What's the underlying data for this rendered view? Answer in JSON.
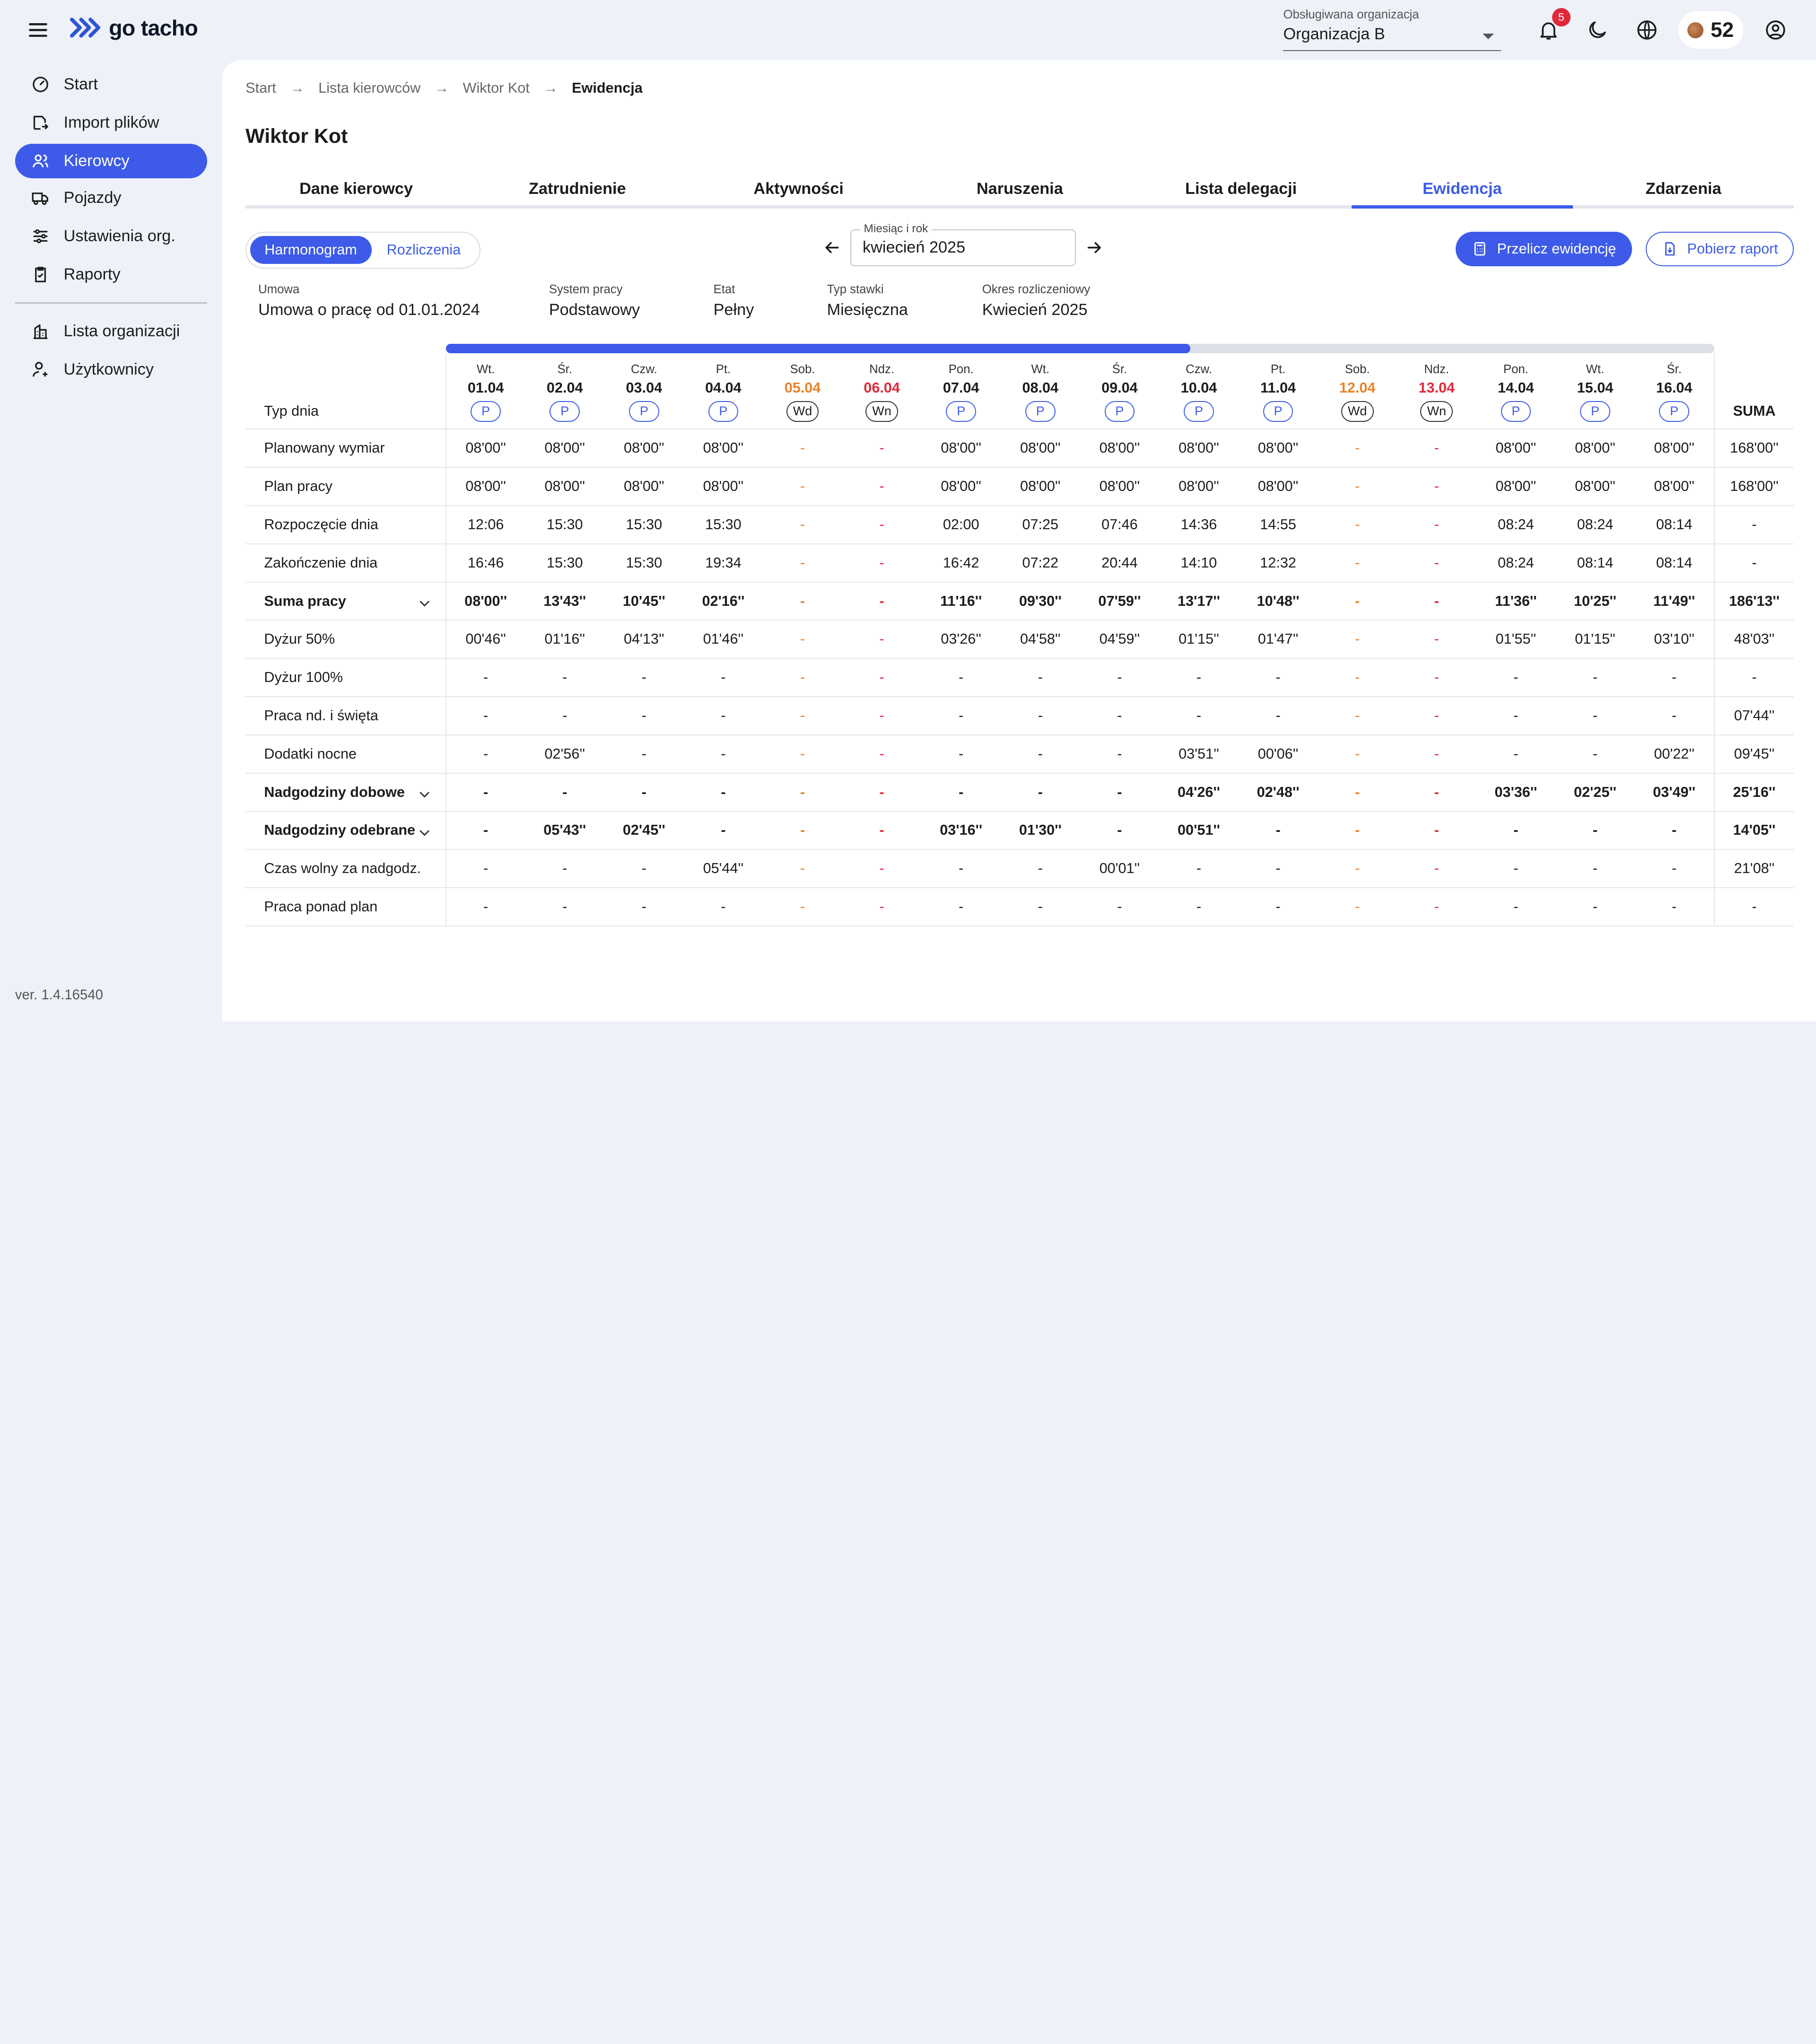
{
  "app": {
    "logo_text": "go tacho",
    "version": "ver. 1.4.16540"
  },
  "org": {
    "label": "Obsługiwana organizacja",
    "value": "Organizacja B"
  },
  "notifications": {
    "count": "5"
  },
  "coins": {
    "value": "52"
  },
  "sidebar": {
    "items": [
      {
        "label": "Start",
        "icon": "gauge-icon"
      },
      {
        "label": "Import plików",
        "icon": "file-import-icon"
      },
      {
        "label": "Kierowcy",
        "icon": "users-icon",
        "active": true
      },
      {
        "label": "Pojazdy",
        "icon": "truck-icon"
      },
      {
        "label": "Ustawienia org.",
        "icon": "sliders-icon"
      },
      {
        "label": "Raporty",
        "icon": "clipboard-icon"
      },
      {
        "label": "Lista organizacji",
        "icon": "building-icon"
      },
      {
        "label": "Użytkownicy",
        "icon": "user-key-icon"
      }
    ]
  },
  "breadcrumb": [
    "Start",
    "Lista kierowców",
    "Wiktor Kot",
    "Ewidencja"
  ],
  "page_title": "Wiktor Kot",
  "tabs": [
    "Dane kierowcy",
    "Zatrudnienie",
    "Aktywności",
    "Naruszenia",
    "Lista delegacji",
    "Ewidencja",
    "Zdarzenia"
  ],
  "active_tab": "Ewidencja",
  "view_toggle": {
    "harmonogram": "Harmonogram",
    "rozliczenia": "Rozliczenia"
  },
  "month": {
    "label": "Miesiąc i rok",
    "value": "kwiecień 2025"
  },
  "actions": {
    "recalc": "Przelicz ewidencję",
    "download": "Pobierz raport"
  },
  "info": [
    {
      "label": "Umowa",
      "value": "Umowa o pracę od 01.01.2024"
    },
    {
      "label": "System pracy",
      "value": "Podstawowy"
    },
    {
      "label": "Etat",
      "value": "Pełny"
    },
    {
      "label": "Typ stawki",
      "value": "Miesięczna"
    },
    {
      "label": "Okres rozliczeniowy",
      "value": "Kwiecień 2025"
    }
  ],
  "scroll_progress": 0.587,
  "colors": {
    "accent": "#3d5be8",
    "saturday": "#e8832a",
    "sunday": "#e0283a"
  },
  "table": {
    "type_label": "Typ dnia",
    "sum_label": "SUMA",
    "days": [
      {
        "name": "Wt.",
        "date": "01.04",
        "type": "P",
        "kind": "work"
      },
      {
        "name": "Śr.",
        "date": "02.04",
        "type": "P",
        "kind": "work"
      },
      {
        "name": "Czw.",
        "date": "03.04",
        "type": "P",
        "kind": "work"
      },
      {
        "name": "Pt.",
        "date": "04.04",
        "type": "P",
        "kind": "work"
      },
      {
        "name": "Sob.",
        "date": "05.04",
        "type": "Wd",
        "kind": "sat"
      },
      {
        "name": "Ndz.",
        "date": "06.04",
        "type": "Wn",
        "kind": "sun"
      },
      {
        "name": "Pon.",
        "date": "07.04",
        "type": "P",
        "kind": "work"
      },
      {
        "name": "Wt.",
        "date": "08.04",
        "type": "P",
        "kind": "work"
      },
      {
        "name": "Śr.",
        "date": "09.04",
        "type": "P",
        "kind": "work"
      },
      {
        "name": "Czw.",
        "date": "10.04",
        "type": "P",
        "kind": "work"
      },
      {
        "name": "Pt.",
        "date": "11.04",
        "type": "P",
        "kind": "work"
      },
      {
        "name": "Sob.",
        "date": "12.04",
        "type": "Wd",
        "kind": "sat"
      },
      {
        "name": "Ndz.",
        "date": "13.04",
        "type": "Wn",
        "kind": "sun"
      },
      {
        "name": "Pon.",
        "date": "14.04",
        "type": "P",
        "kind": "work"
      },
      {
        "name": "Wt.",
        "date": "15.04",
        "type": "P",
        "kind": "work"
      },
      {
        "name": "Śr.",
        "date": "16.04",
        "type": "P",
        "kind": "work"
      }
    ],
    "rows": [
      {
        "label": "Planowany wymiar",
        "bold": false,
        "expand": false,
        "values": [
          "08'00''",
          "08'00''",
          "08'00''",
          "08'00''",
          "-",
          "-",
          "08'00''",
          "08'00''",
          "08'00''",
          "08'00''",
          "08'00''",
          "-",
          "-",
          "08'00''",
          "08'00''",
          "08'00''"
        ],
        "sum": "168'00''"
      },
      {
        "label": "Plan pracy",
        "bold": false,
        "expand": false,
        "values": [
          "08'00''",
          "08'00''",
          "08'00''",
          "08'00''",
          "-",
          "-",
          "08'00''",
          "08'00''",
          "08'00''",
          "08'00''",
          "08'00''",
          "-",
          "-",
          "08'00''",
          "08'00''",
          "08'00''"
        ],
        "sum": "168'00''"
      },
      {
        "label": "Rozpoczęcie dnia",
        "bold": false,
        "expand": false,
        "values": [
          "12:06",
          "15:30",
          "15:30",
          "15:30",
          "-",
          "-",
          "02:00",
          "07:25",
          "07:46",
          "14:36",
          "14:55",
          "-",
          "-",
          "08:24",
          "08:24",
          "08:14"
        ],
        "sum": "-"
      },
      {
        "label": "Zakończenie dnia",
        "bold": false,
        "expand": false,
        "values": [
          "16:46",
          "15:30",
          "15:30",
          "19:34",
          "-",
          "-",
          "16:42",
          "07:22",
          "20:44",
          "14:10",
          "12:32",
          "-",
          "-",
          "08:24",
          "08:14",
          "08:14"
        ],
        "sum": "-"
      },
      {
        "label": "Suma pracy",
        "bold": true,
        "expand": true,
        "values": [
          "08'00''",
          "13'43''",
          "10'45''",
          "02'16''",
          "-",
          "-",
          "11'16''",
          "09'30''",
          "07'59''",
          "13'17''",
          "10'48''",
          "-",
          "-",
          "11'36''",
          "10'25''",
          "11'49''"
        ],
        "sum": "186'13''"
      },
      {
        "label": "Dyżur 50%",
        "bold": false,
        "expand": false,
        "values": [
          "00'46''",
          "01'16''",
          "04'13''",
          "01'46''",
          "-",
          "-",
          "03'26''",
          "04'58''",
          "04'59''",
          "01'15''",
          "01'47''",
          "-",
          "-",
          "01'55''",
          "01'15''",
          "03'10''"
        ],
        "sum": "48'03''"
      },
      {
        "label": "Dyżur 100%",
        "bold": false,
        "expand": false,
        "values": [
          "-",
          "-",
          "-",
          "-",
          "-",
          "-",
          "-",
          "-",
          "-",
          "-",
          "-",
          "-",
          "-",
          "-",
          "-",
          "-"
        ],
        "sum": "-"
      },
      {
        "label": "Praca nd. i święta",
        "bold": false,
        "expand": false,
        "values": [
          "-",
          "-",
          "-",
          "-",
          "-",
          "-",
          "-",
          "-",
          "-",
          "-",
          "-",
          "-",
          "-",
          "-",
          "-",
          "-"
        ],
        "sum": "07'44''"
      },
      {
        "label": "Dodatki nocne",
        "bold": false,
        "expand": false,
        "values": [
          "-",
          "02'56''",
          "-",
          "-",
          "-",
          "-",
          "-",
          "-",
          "-",
          "03'51''",
          "00'06''",
          "-",
          "-",
          "-",
          "-",
          "00'22''"
        ],
        "sum": "09'45''"
      },
      {
        "label": "Nadgodziny dobowe",
        "bold": true,
        "expand": true,
        "values": [
          "-",
          "-",
          "-",
          "-",
          "-",
          "-",
          "-",
          "-",
          "-",
          "04'26''",
          "02'48''",
          "-",
          "-",
          "03'36''",
          "02'25''",
          "03'49''"
        ],
        "sum": "25'16''"
      },
      {
        "label": "Nadgodziny odebrane",
        "bold": true,
        "expand": true,
        "values": [
          "-",
          "05'43''",
          "02'45''",
          "-",
          "-",
          "-",
          "03'16''",
          "01'30''",
          "-",
          "00'51''",
          "-",
          "-",
          "-",
          "-",
          "-",
          "-"
        ],
        "sum": "14'05''"
      },
      {
        "label": "Czas wolny za nadgodz.",
        "bold": false,
        "expand": false,
        "values": [
          "-",
          "-",
          "-",
          "05'44''",
          "-",
          "-",
          "-",
          "-",
          "00'01''",
          "-",
          "-",
          "-",
          "-",
          "-",
          "-",
          "-"
        ],
        "sum": "21'08''"
      },
      {
        "label": "Praca ponad plan",
        "bold": false,
        "expand": false,
        "values": [
          "-",
          "-",
          "-",
          "-",
          "-",
          "-",
          "-",
          "-",
          "-",
          "-",
          "-",
          "-",
          "-",
          "-",
          "-",
          "-"
        ],
        "sum": "-"
      }
    ]
  }
}
